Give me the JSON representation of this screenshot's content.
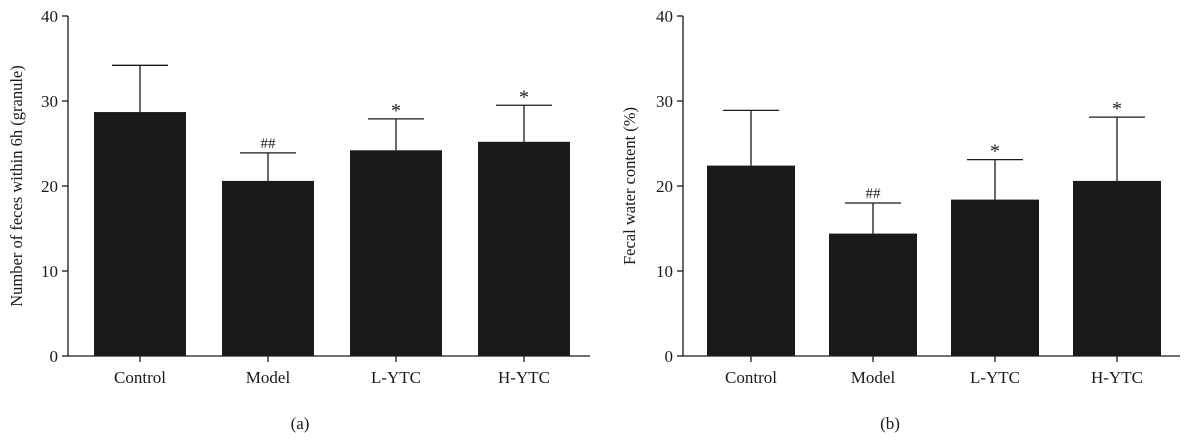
{
  "chart_data": [
    {
      "type": "bar",
      "panel_label": "(a)",
      "categories": [
        "Control",
        "Model",
        "L-YTC",
        "H-YTC"
      ],
      "values": [
        28.7,
        20.6,
        24.2,
        25.2
      ],
      "error_upper": [
        34.2,
        23.9,
        27.9,
        29.5
      ],
      "annotations": [
        "",
        "##",
        "*",
        "*"
      ],
      "ylabel": "Number of feces within 6h (granule)",
      "xlabel": "",
      "ylim": [
        0,
        40
      ],
      "yticks": [
        "0",
        "10",
        "20",
        "30",
        "40"
      ],
      "bar_color": "#1a1a1a",
      "grid": false
    },
    {
      "type": "bar",
      "panel_label": "(b)",
      "categories": [
        "Control",
        "Model",
        "L-YTC",
        "H-YTC"
      ],
      "values": [
        22.4,
        14.4,
        18.4,
        20.6
      ],
      "error_upper": [
        28.9,
        18.0,
        23.1,
        28.1
      ],
      "annotations": [
        "",
        "##",
        "*",
        "*"
      ],
      "ylabel": "Fecal water content (%)",
      "xlabel": "",
      "ylim": [
        0,
        40
      ],
      "yticks": [
        "0",
        "10",
        "20",
        "30",
        "40"
      ],
      "bar_color": "#1a1a1a",
      "grid": false
    }
  ]
}
